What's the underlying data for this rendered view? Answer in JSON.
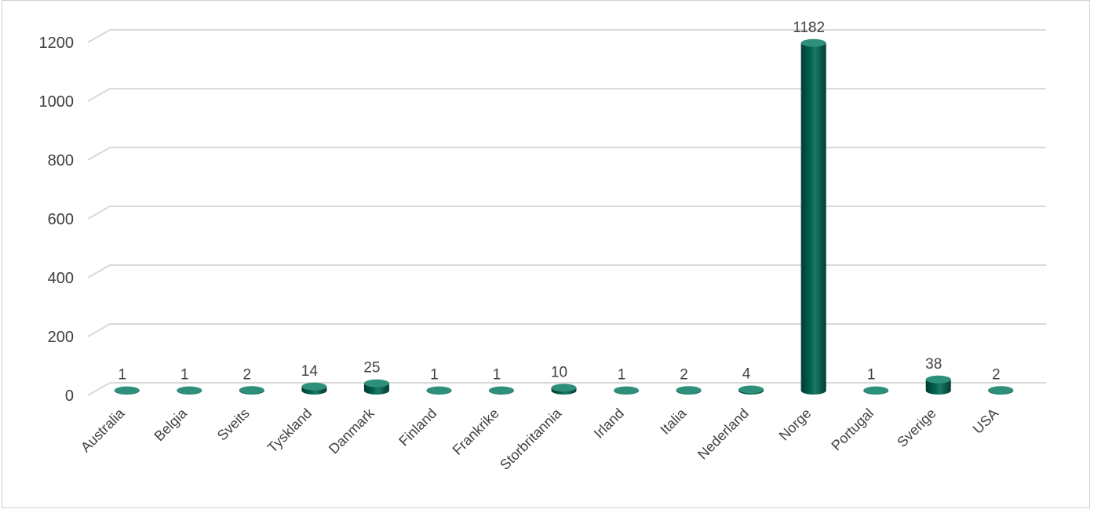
{
  "chart_data": {
    "type": "bar",
    "title": "",
    "xlabel": "",
    "ylabel": "",
    "ylim": [
      0,
      1200
    ],
    "yticks": [
      0,
      200,
      400,
      600,
      800,
      1000,
      1200
    ],
    "categories": [
      "Australia",
      "Belgia",
      "Sveits",
      "Tyskland",
      "Danmark",
      "Finland",
      "Frankrike",
      "Storbritannia",
      "Irland",
      "Italia",
      "Nederland",
      "Norge",
      "Portugal",
      "Sverige",
      "USA"
    ],
    "values": [
      1,
      1,
      2,
      14,
      25,
      1,
      1,
      10,
      1,
      2,
      4,
      1182,
      1,
      38,
      2
    ],
    "data_labels": [
      "1",
      "1",
      "2",
      "14",
      "25",
      "1",
      "1",
      "10",
      "1",
      "2",
      "4",
      "1182",
      "1",
      "38",
      "2"
    ],
    "grid": true,
    "legend": "none",
    "colors": {
      "bar": "#00604d",
      "bar_dark": "#003d31",
      "bar_light": "#2e8f7a",
      "grid": "#d9d9d9",
      "text": "#404040"
    }
  }
}
